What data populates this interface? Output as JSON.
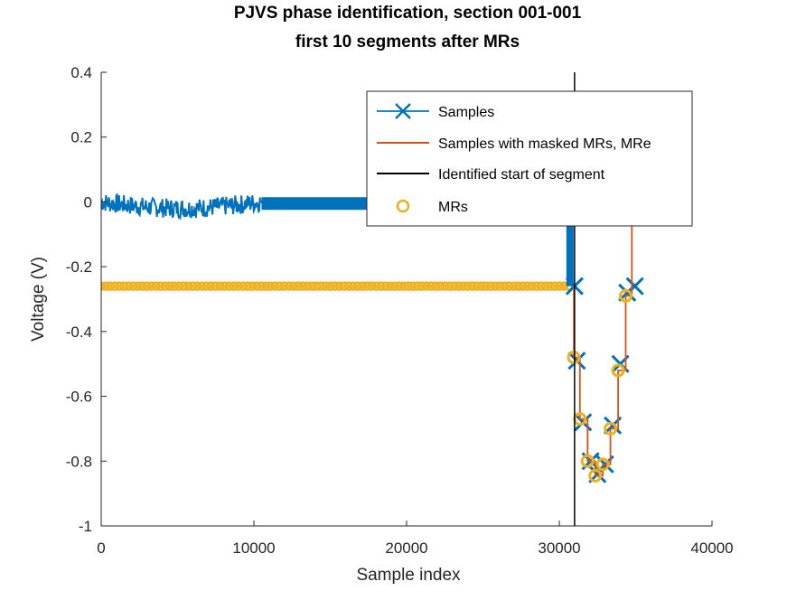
{
  "chart_data": {
    "type": "line",
    "title": "PJVS phase identification, section 001-001",
    "subtitle": "first 10 segments after MRs",
    "xlabel": "Sample index",
    "ylabel": "Voltage (V)",
    "xlim": [
      0,
      40000
    ],
    "ylim": [
      -1,
      0.4
    ],
    "xticks": [
      "0",
      "10000",
      "20000",
      "30000",
      "40000"
    ],
    "yticks": [
      "-1",
      "-0.8",
      "-0.6",
      "-0.4",
      "-0.2",
      "0",
      "0.2",
      "0.4"
    ],
    "grid": false,
    "legend_position": "top-right",
    "colors": {
      "samples": "#0072BD",
      "masked": "#D95319",
      "segment_start": "#000000",
      "mrs": "#EDB120"
    },
    "series": [
      {
        "name": "Samples",
        "marker": "x",
        "noise_region": {
          "x_start": 0,
          "x_end": 10500,
          "level": 0.0,
          "amplitude": 0.03
        },
        "flat_region": {
          "x_start": 10500,
          "x_end": 30700,
          "level": -0.005
        },
        "transition": {
          "x": 30700,
          "from": 0.0,
          "to": -0.26
        },
        "points": [
          {
            "x": 31000,
            "y": -0.26
          },
          {
            "x": 31150,
            "y": -0.49
          },
          {
            "x": 31550,
            "y": -0.68
          },
          {
            "x": 32050,
            "y": -0.8
          },
          {
            "x": 32500,
            "y": -0.84
          },
          {
            "x": 33000,
            "y": -0.81
          },
          {
            "x": 33500,
            "y": -0.69
          },
          {
            "x": 34000,
            "y": -0.5
          },
          {
            "x": 34450,
            "y": -0.28
          },
          {
            "x": 34950,
            "y": -0.26
          }
        ]
      },
      {
        "name": "Samples with masked MRs, MRe",
        "x": [
          30950,
          30950,
          31350,
          31350,
          31850,
          31850,
          32350,
          32350,
          32850,
          32850,
          33350,
          33350,
          33850,
          33850,
          34350,
          34350,
          34750,
          34750
        ],
        "y": [
          -0.26,
          -0.48,
          -0.48,
          -0.67,
          -0.67,
          -0.8,
          -0.8,
          -0.845,
          -0.845,
          -0.81,
          -0.81,
          -0.7,
          -0.7,
          -0.52,
          -0.52,
          -0.29,
          -0.29,
          0.0
        ]
      },
      {
        "name": "Identified start of segment",
        "x": [
          31000
        ]
      },
      {
        "name": "MRs",
        "marker": "o",
        "flat_region": {
          "x_start": 0,
          "x_end": 30600,
          "level": -0.26
        },
        "points": [
          {
            "x": 30950,
            "y": -0.48
          },
          {
            "x": 31350,
            "y": -0.67
          },
          {
            "x": 31850,
            "y": -0.8
          },
          {
            "x": 32350,
            "y": -0.845
          },
          {
            "x": 32850,
            "y": -0.81
          },
          {
            "x": 33350,
            "y": -0.7
          },
          {
            "x": 33850,
            "y": -0.52
          },
          {
            "x": 34350,
            "y": -0.29
          }
        ]
      }
    ],
    "legend": [
      "Samples",
      "Samples with masked MRs, MRe",
      "Identified start of segment",
      "MRs"
    ]
  }
}
